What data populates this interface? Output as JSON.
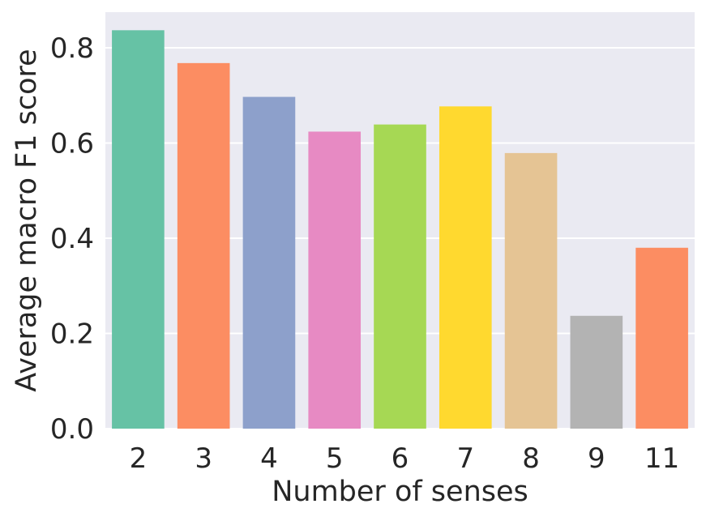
{
  "chart_data": {
    "type": "bar",
    "title": "",
    "xlabel": "Number of senses",
    "ylabel": "Average macro F1 score",
    "categories": [
      "2",
      "3",
      "4",
      "5",
      "6",
      "7",
      "8",
      "9",
      "11"
    ],
    "values": [
      0.837,
      0.768,
      0.697,
      0.624,
      0.639,
      0.677,
      0.579,
      0.237,
      0.38
    ],
    "ylim": [
      0.0,
      0.875
    ],
    "yticks": [
      0.0,
      0.2,
      0.4,
      0.6,
      0.8
    ],
    "ytick_labels": [
      "0.0",
      "0.2",
      "0.4",
      "0.6",
      "0.8"
    ],
    "grid": true,
    "legend": "none",
    "style": {
      "background": "#EAEAF2",
      "grid_color": "#FFFFFF",
      "text_color": "#262626"
    },
    "colors": [
      "#66C2A5",
      "#FC8D62",
      "#8DA0CB",
      "#E78AC3",
      "#A6D854",
      "#FFD92F",
      "#E5C494",
      "#B3B3B3",
      "#FC8D62"
    ]
  }
}
